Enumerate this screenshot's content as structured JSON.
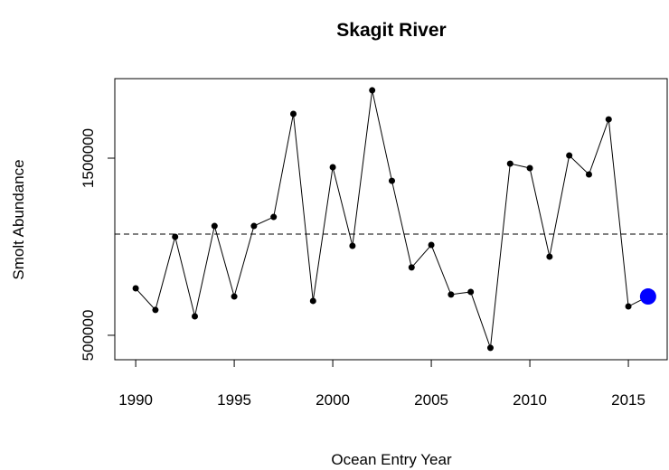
{
  "chart_data": {
    "type": "line",
    "title": "Skagit River",
    "x_label": "Ocean Entry Year",
    "y_label": "Smolt Abundance",
    "x": [
      1990,
      1991,
      1992,
      1993,
      1994,
      1995,
      1996,
      1997,
      1998,
      1999,
      2000,
      2001,
      2002,
      2003,
      2004,
      2005,
      2006,
      2007,
      2008,
      2009,
      2010,
      2011,
      2012,
      2013,
      2014,
      2015,
      2016
    ],
    "series": [
      {
        "color": "#000000",
        "values": [
          765000,
          643000,
          1056000,
          607000,
          1117000,
          719000,
          1117000,
          1168000,
          1750000,
          694000,
          1449000,
          1005000,
          1883000,
          1372000,
          883000,
          1010000,
          730000,
          745000,
          429000,
          1469000,
          1444000,
          944000,
          1515000,
          1408000,
          1719000,
          663000,
          719000
        ]
      }
    ],
    "highlight_index": 26,
    "highlight_color": "#0000ff",
    "reference_line": 1071000,
    "xlim": [
      1988.94,
      2016.97
    ],
    "xticks": [
      1990,
      1995,
      2000,
      2005,
      2010,
      2015
    ],
    "ylim": [
      362000,
      1949000
    ],
    "yticks": [
      500000,
      1500000
    ]
  }
}
